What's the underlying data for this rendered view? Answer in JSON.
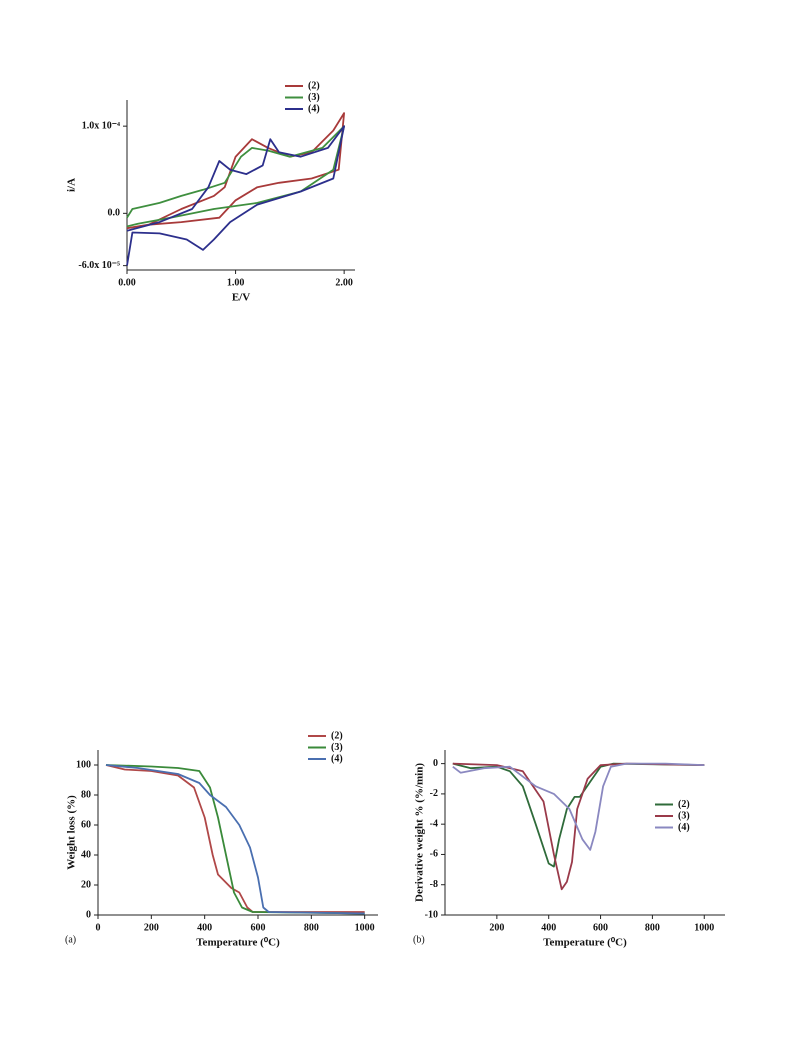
{
  "chart_data": [
    {
      "type": "line",
      "xlabel": "E/V",
      "ylabel": "i/A",
      "legend": "upper right",
      "xlim": [
        0,
        2.1
      ],
      "xticks": [
        {
          "value": 0,
          "label": "0.00"
        },
        {
          "value": 1,
          "label": "1.00"
        },
        {
          "value": 2,
          "label": "2.00"
        }
      ],
      "ylim": [
        -6.5e-05,
        0.00013
      ],
      "yticks": [
        {
          "value": 0.0001,
          "label": "1.0x 10⁻⁴"
        },
        {
          "value": 0,
          "label": "0.0"
        },
        {
          "value": -6e-05,
          "label": "-6.0x 10⁻⁵"
        }
      ],
      "series": [
        {
          "name": "(2)",
          "color": "#a83a3a",
          "x": [
            0,
            0.2,
            0.5,
            0.8,
            0.9,
            1.0,
            1.15,
            1.3,
            1.5,
            1.7,
            1.9,
            2.0,
            1.95,
            1.7,
            1.4,
            1.2,
            1.0,
            0.85,
            0.5,
            0.2,
            0
          ],
          "values": [
            -1.7e-05,
            -1.3e-05,
            5e-06,
            2e-05,
            3e-05,
            6.5e-05,
            8.5e-05,
            7.5e-05,
            6.5e-05,
            7e-05,
            9.5e-05,
            0.000115,
            5e-05,
            4e-05,
            3.5e-05,
            3e-05,
            1.5e-05,
            -5e-06,
            -1e-05,
            -1.3e-05,
            -1.7e-05
          ]
        },
        {
          "name": "(3)",
          "color": "#3f8f3f",
          "x": [
            0,
            0.05,
            0.3,
            0.5,
            0.7,
            0.9,
            1.05,
            1.15,
            1.3,
            1.5,
            1.8,
            2.0,
            1.9,
            1.6,
            1.2,
            0.8,
            0.4,
            0.1,
            0
          ],
          "values": [
            -5e-06,
            5e-06,
            1.2e-05,
            2e-05,
            2.7e-05,
            3.5e-05,
            6.5e-05,
            7.5e-05,
            7.2e-05,
            6.5e-05,
            7.5e-05,
            0.0001,
            5e-05,
            2.5e-05,
            1.2e-05,
            5e-06,
            -5e-06,
            -1.2e-05,
            -1.5e-05
          ]
        },
        {
          "name": "(4)",
          "color": "#2c2f8c",
          "x": [
            0,
            0.3,
            0.6,
            0.75,
            0.85,
            0.95,
            1.1,
            1.25,
            1.32,
            1.4,
            1.6,
            1.85,
            2.0,
            1.9,
            1.6,
            1.2,
            0.95,
            0.8,
            0.7,
            0.55,
            0.3,
            0.05,
            0
          ],
          "values": [
            -2e-05,
            -1e-05,
            5e-06,
            3e-05,
            6e-05,
            5e-05,
            4.5e-05,
            5.5e-05,
            8.5e-05,
            7e-05,
            6.5e-05,
            7.5e-05,
            0.0001,
            4e-05,
            2.5e-05,
            1e-05,
            -1e-05,
            -3e-05,
            -4.2e-05,
            -3e-05,
            -2.3e-05,
            -2.2e-05,
            -6e-05
          ]
        }
      ]
    },
    {
      "type": "line",
      "panel": "(a)",
      "xlabel": "Temperature (⁰C)",
      "ylabel": "Weight loss (%)",
      "legend": "upper right",
      "xlim": [
        0,
        1050
      ],
      "xticks": [
        0,
        200,
        400,
        600,
        800,
        1000
      ],
      "ylim": [
        0,
        110
      ],
      "yticks": [
        0,
        20,
        40,
        60,
        80,
        100
      ],
      "series": [
        {
          "name": "(2)",
          "color": "#b04848",
          "x": [
            30,
            100,
            200,
            300,
            360,
            400,
            430,
            450,
            500,
            530,
            560,
            580,
            1000
          ],
          "values": [
            100,
            97,
            96,
            93,
            85,
            65,
            40,
            27,
            18,
            15,
            5,
            2,
            2
          ]
        },
        {
          "name": "(3)",
          "color": "#3a8a3a",
          "x": [
            30,
            200,
            300,
            380,
            420,
            450,
            480,
            510,
            540,
            580,
            1000
          ],
          "values": [
            100,
            99,
            98,
            96,
            85,
            65,
            40,
            15,
            5,
            2,
            1
          ]
        },
        {
          "name": "(4)",
          "color": "#4a6fb0",
          "x": [
            30,
            150,
            300,
            380,
            420,
            480,
            530,
            570,
            600,
            620,
            640,
            1000
          ],
          "values": [
            100,
            98,
            94,
            88,
            80,
            72,
            60,
            45,
            25,
            5,
            2,
            1
          ]
        }
      ]
    },
    {
      "type": "line",
      "panel": "(b)",
      "xlabel": "Temperature (⁰C)",
      "ylabel": "Derivative weight % (%/min)",
      "legend": "center right",
      "xlim": [
        0,
        1080
      ],
      "xticks": [
        200,
        400,
        600,
        800,
        1000
      ],
      "ylim": [
        -10,
        0.9
      ],
      "yticks": [
        0,
        -2,
        -4,
        -6,
        -8,
        -10
      ],
      "series": [
        {
          "name": "(2)",
          "color": "#2f6b3a",
          "x": [
            30,
            100,
            200,
            250,
            300,
            350,
            400,
            420,
            440,
            470,
            500,
            520,
            560,
            600,
            650,
            1000
          ],
          "values": [
            0,
            -0.3,
            -0.2,
            -0.5,
            -1.5,
            -4,
            -6.6,
            -6.8,
            -5,
            -3,
            -2.2,
            -2.2,
            -1.2,
            -0.2,
            0,
            -0.1
          ]
        },
        {
          "name": "(3)",
          "color": "#9a3a4a",
          "x": [
            30,
            200,
            300,
            380,
            420,
            450,
            470,
            490,
            510,
            550,
            600,
            700,
            1000
          ],
          "values": [
            0,
            -0.1,
            -0.5,
            -2.5,
            -6,
            -8.3,
            -7.8,
            -6.5,
            -3,
            -1,
            -0.1,
            0,
            -0.1
          ]
        },
        {
          "name": "(4)",
          "color": "#8a88c0",
          "x": [
            30,
            60,
            150,
            250,
            350,
            420,
            480,
            530,
            560,
            580,
            610,
            640,
            700,
            850,
            1000
          ],
          "values": [
            -0.2,
            -0.6,
            -0.3,
            -0.2,
            -1.5,
            -2,
            -3,
            -5,
            -5.7,
            -4.5,
            -1.5,
            -0.2,
            0,
            0,
            -0.1
          ]
        }
      ]
    }
  ]
}
